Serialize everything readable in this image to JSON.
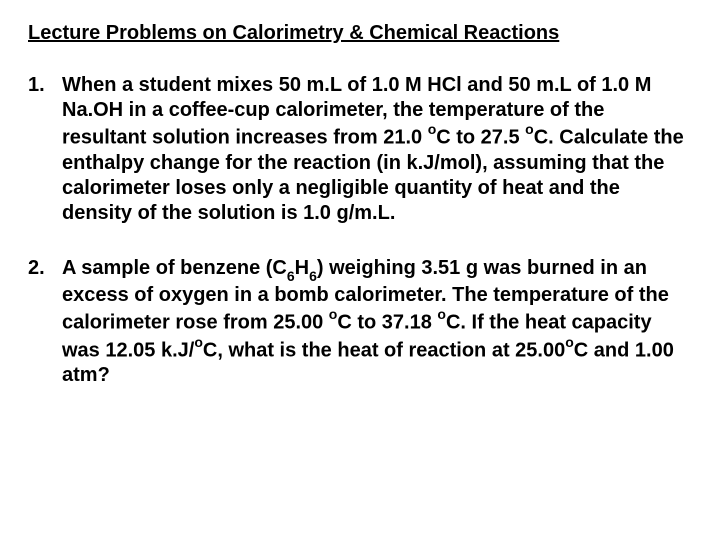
{
  "title": "Lecture Problems on Calorimetry & Chemical Reactions",
  "problems": {
    "p1": {
      "num": "1.",
      "text_a": "When a student mixes 50 m.L of 1.0 M HCl and 50 m.L of 1.0 M Na.OH in a coffee-cup calorimeter, the temperature of the resultant solution increases from 21.0 ",
      "deg1": "o",
      "text_b": "C to 27.5 ",
      "deg2": "o",
      "text_c": "C.  Calculate the enthalpy change for the reaction (in k.J/mol), assuming that the calorimeter loses only a negligible quantity of heat and the density of the solution is 1.0 g/m.L."
    },
    "p2": {
      "num": "2.",
      "text_a": " A sample of benzene (C",
      "sub1": "6",
      "text_b": "H",
      "sub2": "6",
      "text_c": ") weighing 3.51 g was burned in an excess of oxygen in a bomb calorimeter.  The temperature of the calorimeter rose from 25.00 ",
      "deg1": "o",
      "text_d": "C to 37.18 ",
      "deg2": "o",
      "text_e": "C.  If the heat capacity was 12.05 k.J/",
      "deg3": "o",
      "text_f": "C, what is the heat of reaction at 25.00",
      "deg4": "o",
      "text_g": "C and 1.00 atm?"
    }
  },
  "colors": {
    "background": "#ffffff",
    "text": "#000000"
  },
  "typography": {
    "font_family": "Arial",
    "title_fontsize": 20,
    "body_fontsize": 20,
    "weight": "bold"
  }
}
